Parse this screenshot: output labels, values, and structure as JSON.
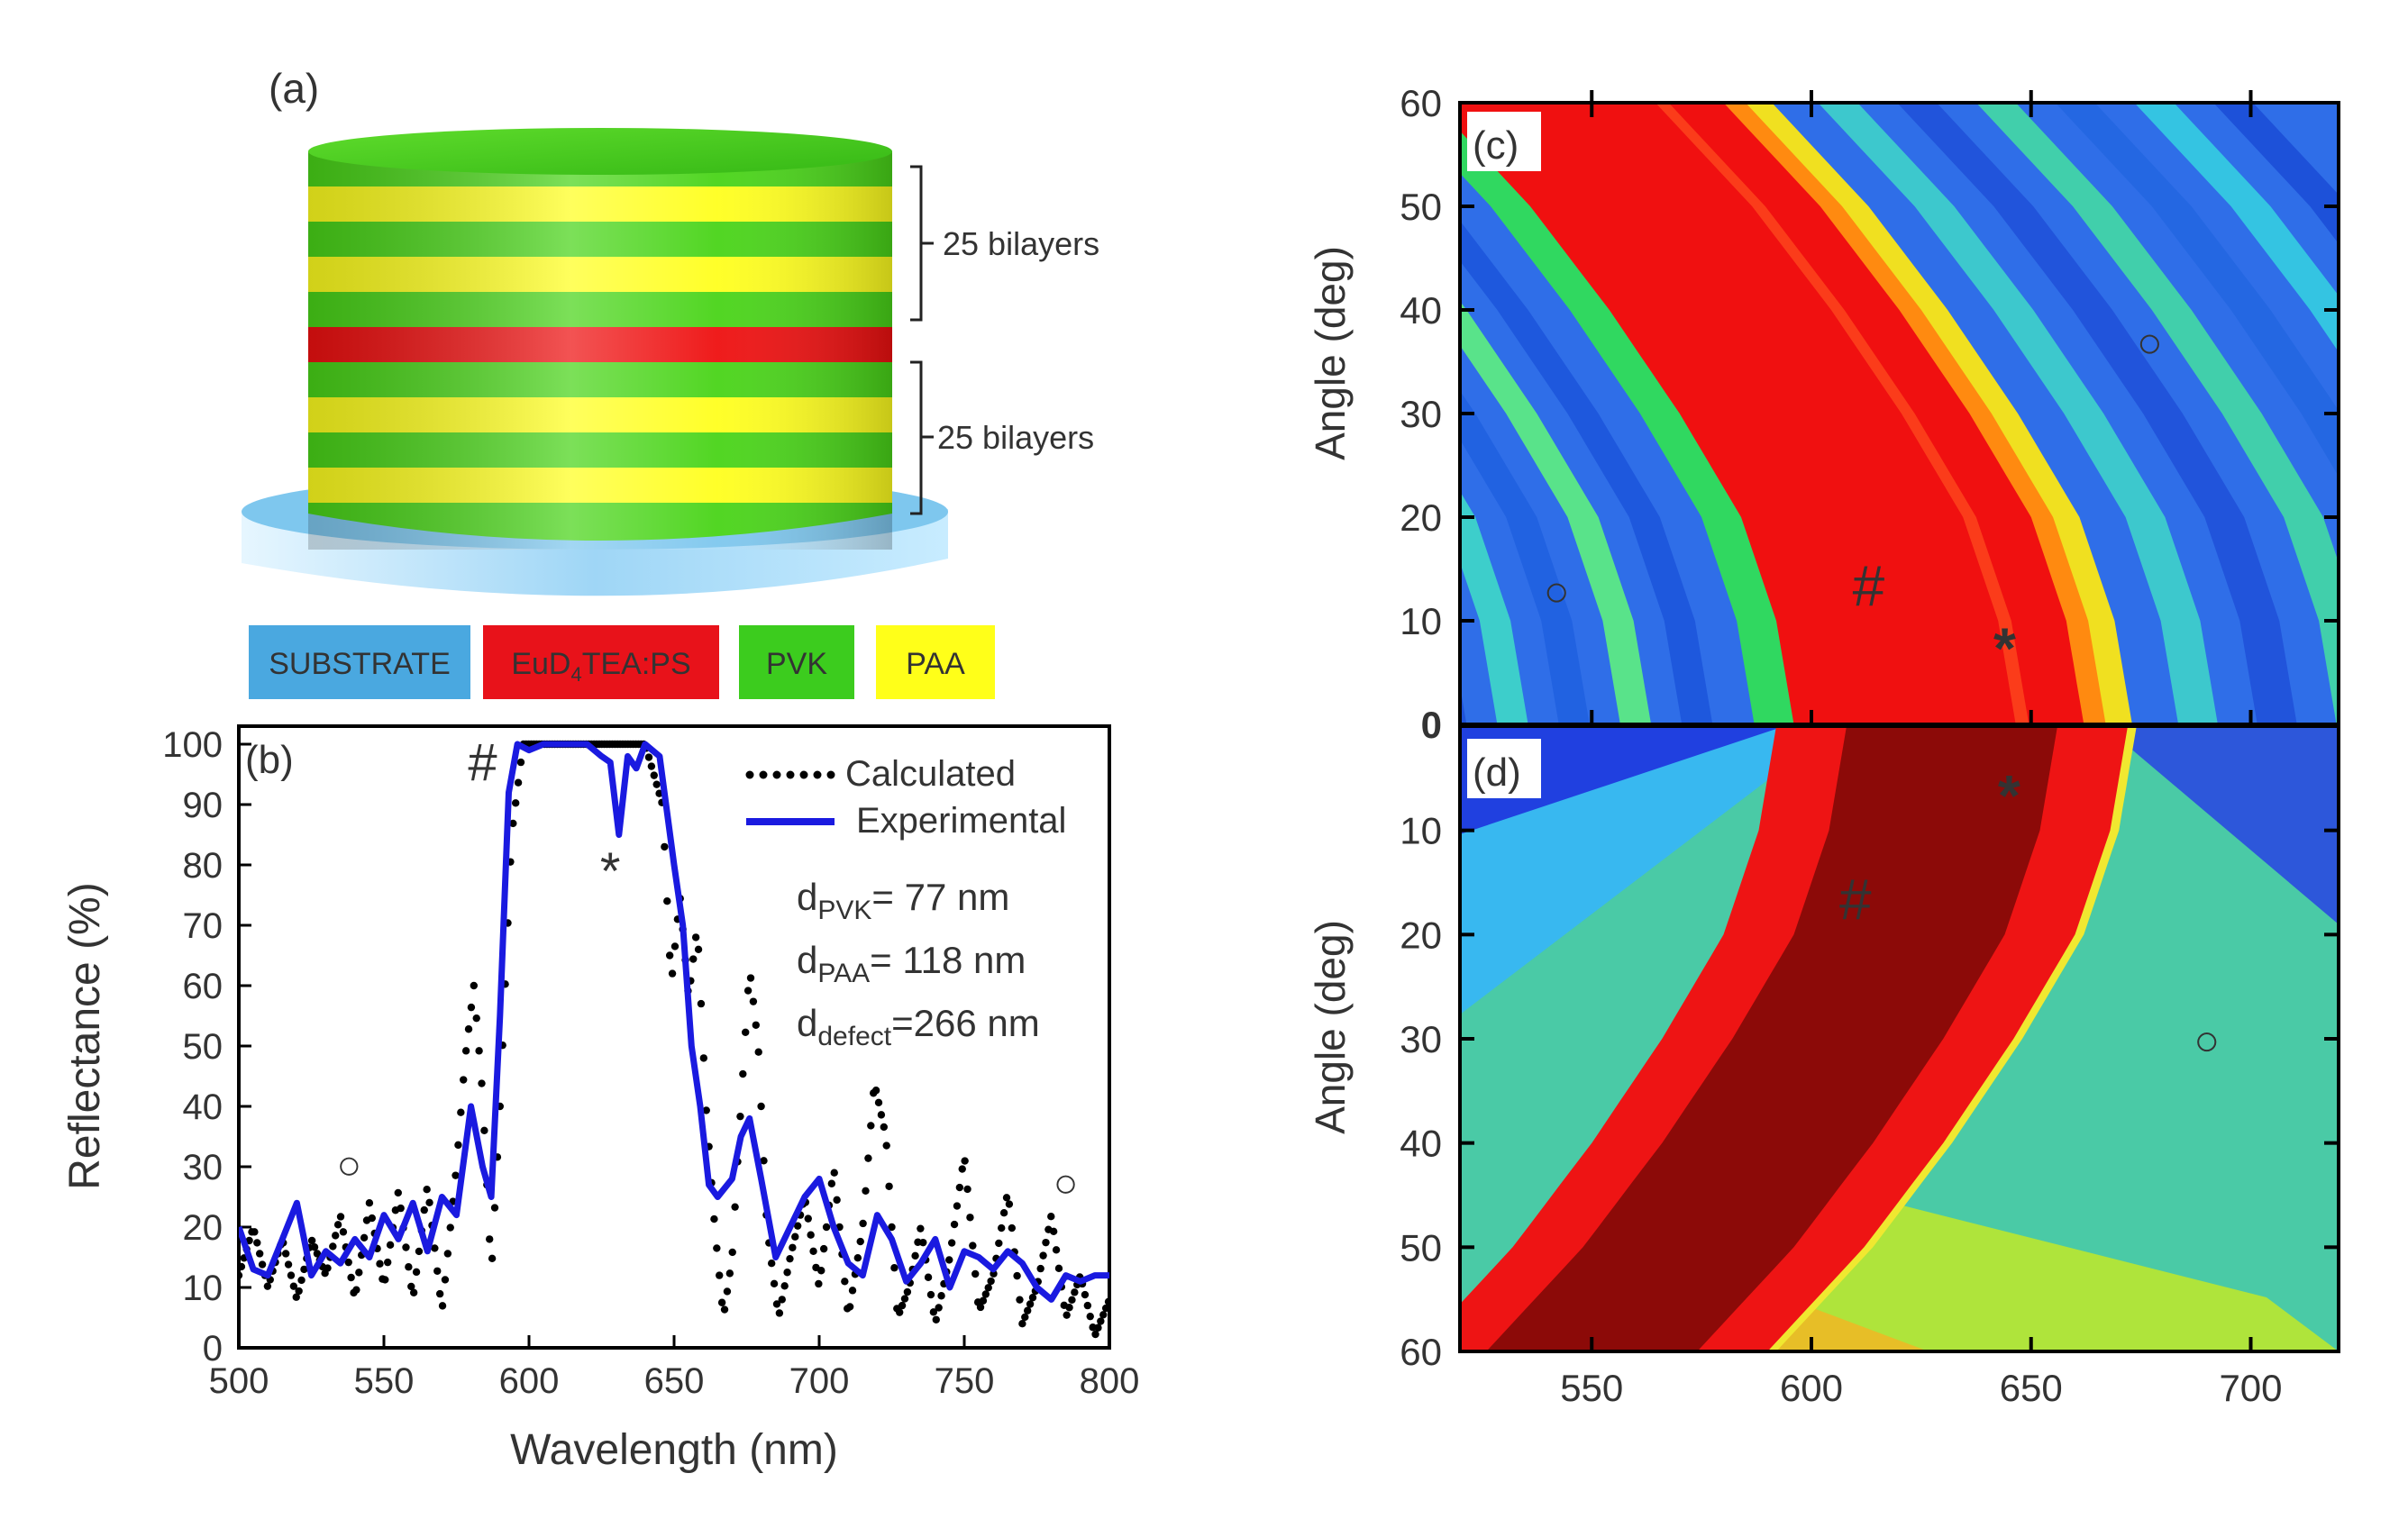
{
  "figure": {
    "panel_a": {
      "label": "(a)",
      "bracket_top": "25 bilayers",
      "bracket_bottom": "25 bilayers",
      "legend": [
        {
          "key": "substrate",
          "text": "SUBSTRATE",
          "color": "#4aa8e0",
          "text_color": "#1a2c5a"
        },
        {
          "key": "eu",
          "text": "EuD",
          "sub": "4",
          "text2": "TEA:PS",
          "color": "#e8121a",
          "text_color": "#2a0000"
        },
        {
          "key": "pvk",
          "text": "PVK",
          "color": "#3ccc1e",
          "text_color": "#0b2a05"
        },
        {
          "key": "paa",
          "text": "PAA",
          "color": "#ffff19",
          "text_color": "#333300"
        }
      ],
      "colors": {
        "green": "#49d418",
        "yellow": "#ffff1e",
        "red": "#ee1010",
        "substrate": "#bfe6fb"
      }
    },
    "panel_b": {
      "label": "(b)",
      "hash": "#",
      "star": "*",
      "circle": "○",
      "legend_calc": "Calculated",
      "legend_exp": "Experimental",
      "params": [
        {
          "main": "d",
          "sub": "PVK",
          "rest": "= 77 nm"
        },
        {
          "main": "d",
          "sub": "PAA",
          "rest": "= 118 nm"
        },
        {
          "main": "d",
          "sub": "defect",
          "rest": "=266 nm"
        }
      ]
    },
    "panel_c": {
      "label": "(c)",
      "hash": "#",
      "star": "*"
    },
    "panel_d": {
      "label": "(d)",
      "hash": "#",
      "star": "*"
    }
  },
  "chart_data": [
    {
      "type": "line",
      "panel": "b",
      "xlabel": "Wavelength (nm)",
      "ylabel": "Reflectance (%)",
      "xlim": [
        500,
        800
      ],
      "ylim": [
        0,
        100
      ],
      "xticks": [
        500,
        550,
        600,
        650,
        700,
        750,
        800
      ],
      "yticks": [
        0,
        10,
        20,
        30,
        40,
        50,
        60,
        70,
        80,
        90,
        100
      ],
      "series": [
        {
          "name": "Calculated",
          "style": "dotted",
          "color": "#000000",
          "x": [
            500,
            505,
            510,
            515,
            520,
            525,
            530,
            535,
            540,
            545,
            550,
            555,
            560,
            565,
            570,
            575,
            578,
            581,
            584,
            587,
            590,
            594,
            598,
            602,
            610,
            620,
            630,
            640,
            646,
            649,
            652,
            655,
            658,
            661,
            664,
            667,
            670,
            673,
            676,
            679,
            682,
            686,
            690,
            695,
            700,
            705,
            710,
            715,
            719,
            723,
            727,
            731,
            735,
            740,
            745,
            750,
            755,
            760,
            765,
            770,
            775,
            780,
            785,
            790,
            795,
            800
          ],
          "values": [
            12,
            20,
            10,
            18,
            8,
            18,
            12,
            22,
            8,
            24,
            10,
            26,
            8,
            27,
            6,
            30,
            48,
            60,
            42,
            12,
            40,
            85,
            100,
            100,
            100,
            100,
            100,
            100,
            90,
            60,
            75,
            58,
            70,
            40,
            20,
            5,
            15,
            40,
            63,
            50,
            20,
            5,
            15,
            25,
            10,
            30,
            5,
            20,
            44,
            35,
            5,
            10,
            20,
            4,
            15,
            32,
            6,
            12,
            26,
            4,
            10,
            22,
            5,
            12,
            2,
            8
          ]
        },
        {
          "name": "Experimental",
          "style": "solid",
          "color": "#1a1ae0",
          "x": [
            500,
            505,
            510,
            515,
            520,
            525,
            530,
            535,
            540,
            545,
            550,
            555,
            560,
            565,
            570,
            575,
            580,
            584,
            587,
            590,
            593,
            596,
            600,
            605,
            610,
            615,
            620,
            625,
            628,
            631,
            634,
            637,
            640,
            645,
            650,
            653,
            656,
            659,
            662,
            665,
            670,
            673,
            676,
            680,
            685,
            690,
            695,
            700,
            705,
            710,
            715,
            720,
            725,
            730,
            735,
            740,
            745,
            750,
            755,
            760,
            765,
            770,
            775,
            780,
            785,
            790,
            795,
            800
          ],
          "values": [
            20,
            13,
            12,
            18,
            24,
            12,
            16,
            14,
            18,
            15,
            22,
            18,
            24,
            16,
            25,
            22,
            40,
            30,
            25,
            55,
            92,
            100,
            99,
            100,
            100,
            100,
            100,
            98,
            97,
            85,
            98,
            96,
            100,
            98,
            80,
            70,
            50,
            40,
            27,
            25,
            28,
            35,
            38,
            28,
            15,
            20,
            25,
            28,
            20,
            14,
            12,
            22,
            18,
            11,
            14,
            18,
            10,
            16,
            15,
            13,
            16,
            14,
            10,
            8,
            12,
            11,
            12,
            12
          ]
        }
      ],
      "annotations": [
        {
          "text": "#",
          "x": 584,
          "y": 94
        },
        {
          "text": "*",
          "x": 628,
          "y": 76
        },
        {
          "text": "○",
          "x": 538,
          "y": 28
        },
        {
          "text": "○",
          "x": 785,
          "y": 25
        }
      ]
    },
    {
      "type": "heatmap",
      "panel": "c",
      "xlim": [
        520,
        720
      ],
      "ylim": [
        0,
        60
      ],
      "ylabel": "Angle (deg)",
      "xticks": [
        550,
        600,
        650,
        700
      ],
      "yticks": [
        0,
        10,
        20,
        30,
        40,
        50,
        60
      ],
      "stopband_center": [
        [
          0,
          632
        ],
        [
          10,
          628
        ],
        [
          20,
          620
        ],
        [
          30,
          606
        ],
        [
          40,
          590
        ],
        [
          50,
          572
        ],
        [
          60,
          550
        ]
      ],
      "annotations": [
        {
          "text": "#",
          "x": 613,
          "y": 13
        },
        {
          "text": "*",
          "x": 644,
          "y": 7
        },
        {
          "text": "○",
          "x": 542,
          "y": 13
        },
        {
          "text": "○",
          "x": 677,
          "y": 37
        }
      ]
    },
    {
      "type": "heatmap",
      "panel": "d",
      "xlabel": "",
      "ylabel": "Angle (deg)",
      "xlim": [
        520,
        720
      ],
      "ylim": [
        0,
        60
      ],
      "xticks": [
        550,
        600,
        650,
        700
      ],
      "yticks": [
        10,
        20,
        30,
        40,
        50,
        60
      ],
      "stopband_center": [
        [
          0,
          632
        ],
        [
          10,
          628
        ],
        [
          20,
          620
        ],
        [
          30,
          606
        ],
        [
          40,
          590
        ],
        [
          50,
          572
        ],
        [
          60,
          550
        ]
      ],
      "annotations": [
        {
          "text": "#",
          "x": 610,
          "y": 17
        },
        {
          "text": "*",
          "x": 645,
          "y": 7
        },
        {
          "text": "○",
          "x": 690,
          "y": 30
        }
      ]
    }
  ]
}
